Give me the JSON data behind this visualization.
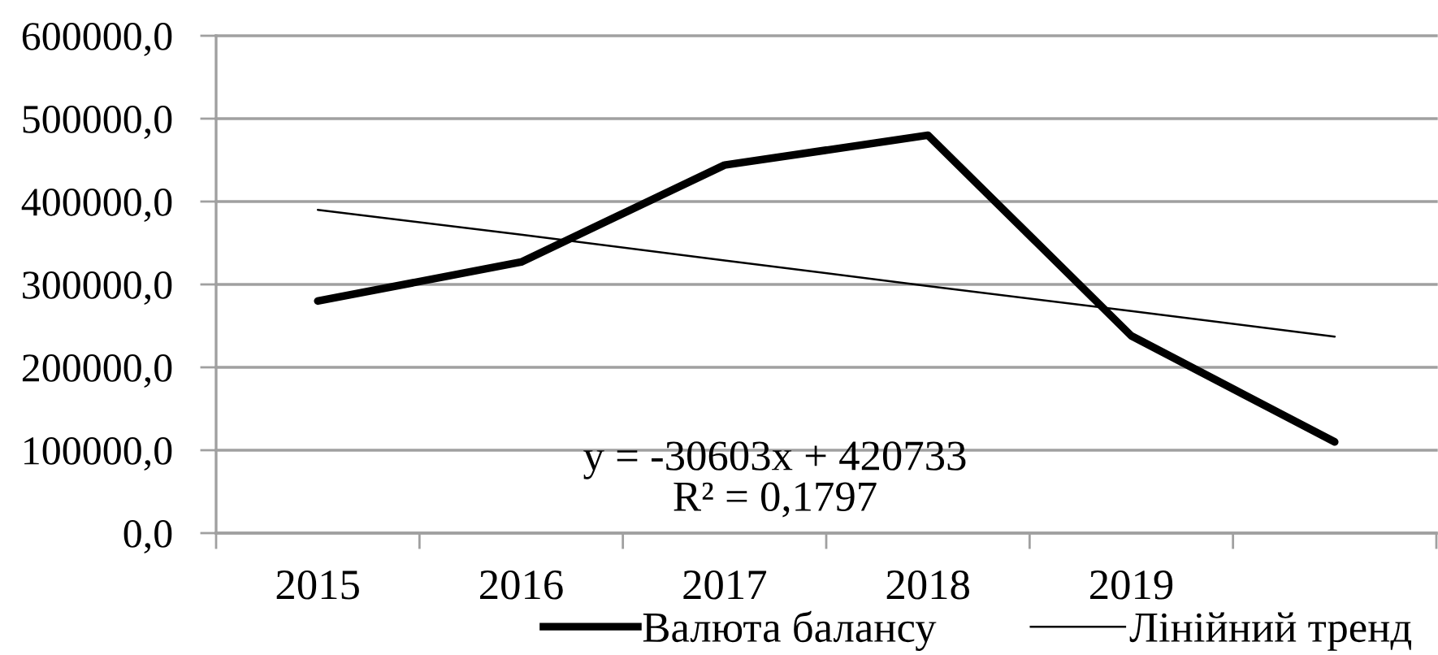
{
  "chart_data": {
    "type": "line",
    "categories": [
      "2015",
      "2016",
      "2017",
      "2018",
      "2019",
      null
    ],
    "series": [
      {
        "name": "Валюта балансу",
        "color": "#000000",
        "values": [
          280000,
          327000,
          444000,
          480000,
          238000,
          110000
        ]
      },
      {
        "name": "Лінійний тренд",
        "color": "#000000",
        "values": [
          390000,
          360000,
          329000,
          298000,
          268000,
          237000
        ]
      }
    ],
    "ylim": [
      0,
      600000
    ],
    "yticks": [
      {
        "value": 0,
        "label": "0,0"
      },
      {
        "value": 100000,
        "label": "100000,0"
      },
      {
        "value": 200000,
        "label": "200000,0"
      },
      {
        "value": 300000,
        "label": "300000,0"
      },
      {
        "value": 400000,
        "label": "400000,0"
      },
      {
        "value": 500000,
        "label": "500000,0"
      },
      {
        "value": 600000,
        "label": "600000,0"
      }
    ],
    "grid": "y",
    "legend": "bottom",
    "line_style": "solid",
    "marker": "none",
    "annotations": [
      "y = -30603x + 420733",
      "R² = 0,1797"
    ]
  }
}
